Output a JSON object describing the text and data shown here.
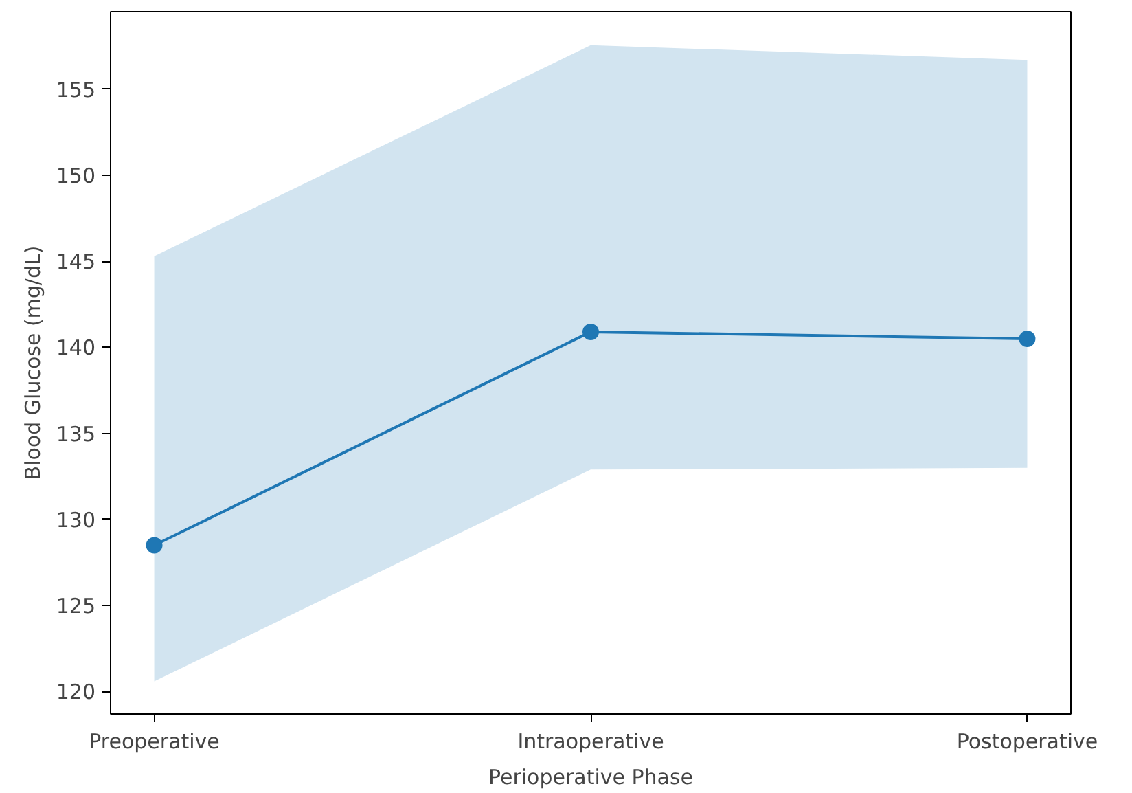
{
  "chart_data": {
    "type": "line",
    "xlabel": "Perioperative Phase",
    "ylabel": "Blood Glucose (mg/dL)",
    "categories": [
      "Preoperative",
      "Intraoperative",
      "Postoperative"
    ],
    "series": [
      {
        "color": "#1f77b4",
        "values": [
          128.5,
          140.9,
          140.5
        ],
        "lower": [
          120.6,
          132.9,
          133.0
        ],
        "upper": [
          145.3,
          157.55,
          156.7
        ]
      }
    ],
    "ylim": [
      118.7,
      159.5
    ],
    "yticks": [
      120,
      125,
      130,
      135,
      140,
      145,
      150,
      155
    ],
    "grid": false,
    "marker": "circle",
    "line_style": "solid"
  }
}
